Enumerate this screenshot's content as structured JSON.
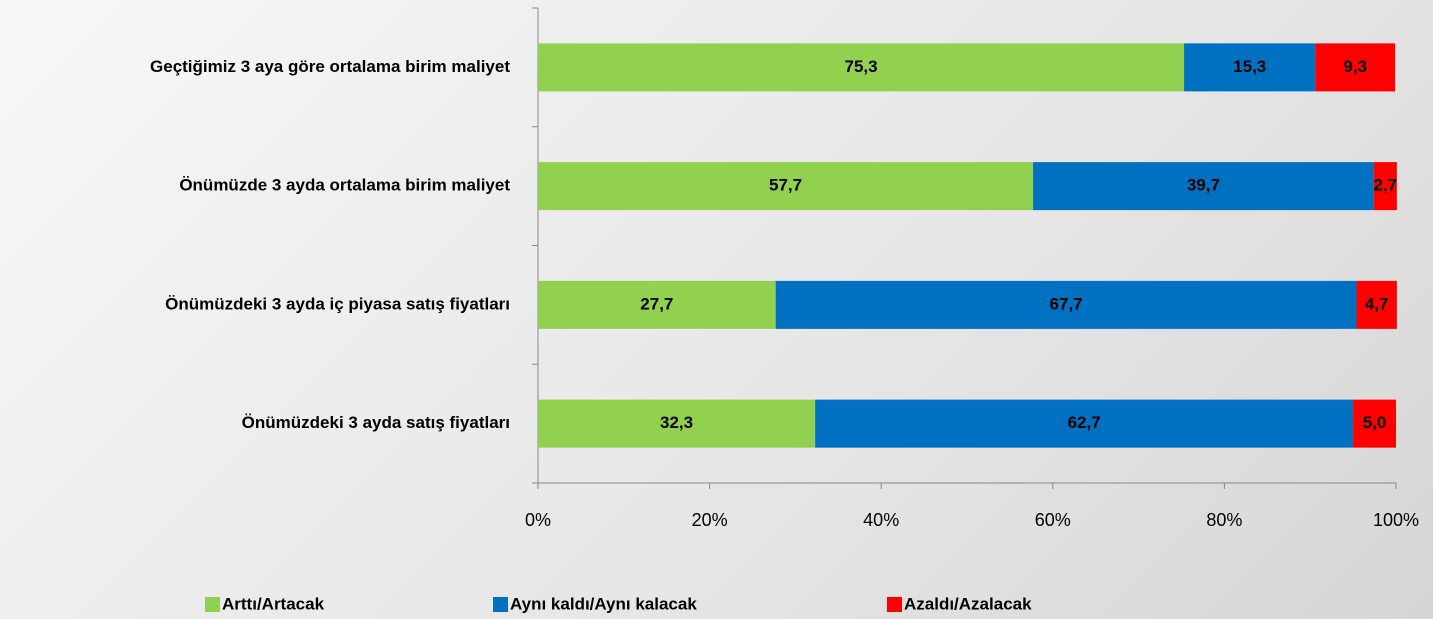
{
  "chart_data": {
    "type": "stacked-bar-horizontal",
    "categories": [
      "Geçtiğimiz 3 aya göre ortalama birim maliyet",
      "Önümüzde 3 ayda ortalama birim maliyet",
      "Önümüzdeki 3 ayda iç piyasa satış fiyatları",
      "Önümüzdeki 3 ayda satış fiyatları"
    ],
    "series": [
      {
        "name": "Arttı/Artacak",
        "color": "#92d050",
        "values": [
          75.3,
          57.7,
          27.7,
          32.3
        ],
        "value_labels": [
          "75,3",
          "57,7",
          "27,7",
          "32,3"
        ]
      },
      {
        "name": "Aynı kaldı/Aynı kalacak",
        "color": "#0070c0",
        "values": [
          15.3,
          39.7,
          67.7,
          62.7
        ],
        "value_labels": [
          "15,3",
          "39,7",
          "67,7",
          "62,7"
        ]
      },
      {
        "name": "Azaldı/Azalacak",
        "color": "#ff0000",
        "values": [
          9.3,
          2.7,
          4.7,
          5.0
        ],
        "value_labels": [
          "9,3",
          "2,7",
          "4,7",
          "5,0"
        ]
      }
    ],
    "xlim": [
      0,
      100
    ],
    "xticks": [
      {
        "value": 0,
        "label": "0%"
      },
      {
        "value": 20,
        "label": "20%"
      },
      {
        "value": 40,
        "label": "40%"
      },
      {
        "value": 60,
        "label": "60%"
      },
      {
        "value": 80,
        "label": "80%"
      },
      {
        "value": 100,
        "label": "100%"
      }
    ],
    "legend": "bottom"
  }
}
